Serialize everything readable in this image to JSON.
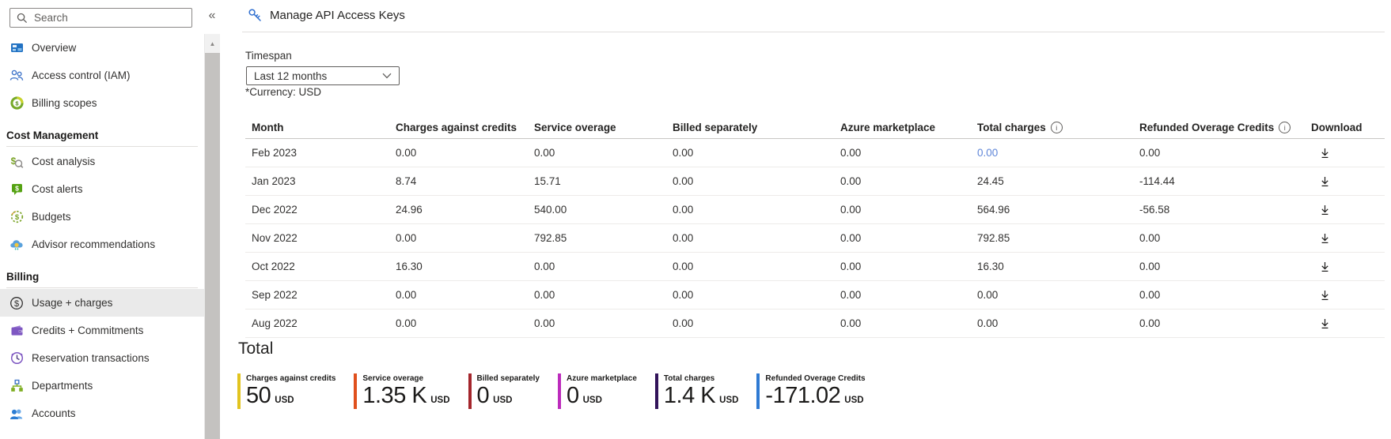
{
  "sidebar": {
    "search_placeholder": "Search",
    "collapse_glyph": "«",
    "scroll_up_glyph": "▲",
    "sections": [
      {
        "header": null,
        "items": [
          {
            "id": "overview",
            "label": "Overview",
            "icon": "overview-icon",
            "selected": false
          },
          {
            "id": "access-control-iam",
            "label": "Access control (IAM)",
            "icon": "access-control-icon",
            "selected": false
          },
          {
            "id": "billing-scopes",
            "label": "Billing scopes",
            "icon": "billing-scopes-icon",
            "selected": false
          }
        ]
      },
      {
        "header": "Cost Management",
        "items": [
          {
            "id": "cost-analysis",
            "label": "Cost analysis",
            "icon": "cost-analysis-icon",
            "selected": false
          },
          {
            "id": "cost-alerts",
            "label": "Cost alerts",
            "icon": "cost-alerts-icon",
            "selected": false
          },
          {
            "id": "budgets",
            "label": "Budgets",
            "icon": "budgets-icon",
            "selected": false
          },
          {
            "id": "advisor-recommendations",
            "label": "Advisor recommendations",
            "icon": "advisor-icon",
            "selected": false
          }
        ]
      },
      {
        "header": "Billing",
        "items": [
          {
            "id": "usage-charges",
            "label": "Usage + charges",
            "icon": "usage-charges-icon",
            "selected": true
          },
          {
            "id": "credits-commitments",
            "label": "Credits + Commitments",
            "icon": "credits-icon",
            "selected": false
          },
          {
            "id": "reservation-transactions",
            "label": "Reservation transactions",
            "icon": "reservation-icon",
            "selected": false
          },
          {
            "id": "departments",
            "label": "Departments",
            "icon": "departments-icon",
            "selected": false
          },
          {
            "id": "accounts",
            "label": "Accounts",
            "icon": "accounts-icon",
            "selected": false
          }
        ]
      }
    ]
  },
  "header": {
    "title": "Manage API Access Keys",
    "icon": "key-icon"
  },
  "main": {
    "timespan_label": "Timespan",
    "timespan_value": "Last 12 months",
    "currency_note": "*Currency: USD",
    "table": {
      "columns": [
        {
          "label": "Month",
          "info": false
        },
        {
          "label": "Charges against credits",
          "info": false
        },
        {
          "label": "Service overage",
          "info": false
        },
        {
          "label": "Billed separately",
          "info": false
        },
        {
          "label": "Azure marketplace",
          "info": false
        },
        {
          "label": "Total charges",
          "info": true
        },
        {
          "label": "Refunded Overage Credits",
          "info": true
        },
        {
          "label": "Download",
          "info": false
        }
      ],
      "rows": [
        {
          "month": "Feb 2023",
          "values": [
            "0.00",
            "0.00",
            "0.00",
            "0.00",
            "0.00",
            "0.00"
          ],
          "total_is_link": true
        },
        {
          "month": "Jan 2023",
          "values": [
            "8.74",
            "15.71",
            "0.00",
            "0.00",
            "24.45",
            "-114.44"
          ],
          "total_is_link": false
        },
        {
          "month": "Dec 2022",
          "values": [
            "24.96",
            "540.00",
            "0.00",
            "0.00",
            "564.96",
            "-56.58"
          ],
          "total_is_link": false
        },
        {
          "month": "Nov 2022",
          "values": [
            "0.00",
            "792.85",
            "0.00",
            "0.00",
            "792.85",
            "0.00"
          ],
          "total_is_link": false
        },
        {
          "month": "Oct 2022",
          "values": [
            "16.30",
            "0.00",
            "0.00",
            "0.00",
            "16.30",
            "0.00"
          ],
          "total_is_link": false
        },
        {
          "month": "Sep 2022",
          "values": [
            "0.00",
            "0.00",
            "0.00",
            "0.00",
            "0.00",
            "0.00"
          ],
          "total_is_link": false
        },
        {
          "month": "Aug 2022",
          "values": [
            "0.00",
            "0.00",
            "0.00",
            "0.00",
            "0.00",
            "0.00"
          ],
          "total_is_link": false
        }
      ],
      "link_color": "#5f86d8"
    },
    "total": {
      "heading": "Total",
      "tiles": [
        {
          "label": "Charges against credits",
          "value": "50",
          "unit": "USD",
          "color": "#e2c41f"
        },
        {
          "label": "Service overage",
          "value": "1.35 K",
          "unit": "USD",
          "color": "#e0501d"
        },
        {
          "label": "Billed separately",
          "value": "0",
          "unit": "USD",
          "color": "#a4262c"
        },
        {
          "label": "Azure marketplace",
          "value": "0",
          "unit": "USD",
          "color": "#bc2bbc"
        },
        {
          "label": "Total charges",
          "value": "1.4 K",
          "unit": "USD",
          "color": "#32145a"
        },
        {
          "label": "Refunded Overage Credits",
          "value": "-171.02",
          "unit": "USD",
          "color": "#2f7ad3"
        }
      ]
    }
  },
  "icons": [
    "search-icon",
    "chevron-down-icon",
    "info-icon",
    "download-icon",
    "key-icon",
    "collapse-icon",
    "scroll-up-icon"
  ]
}
